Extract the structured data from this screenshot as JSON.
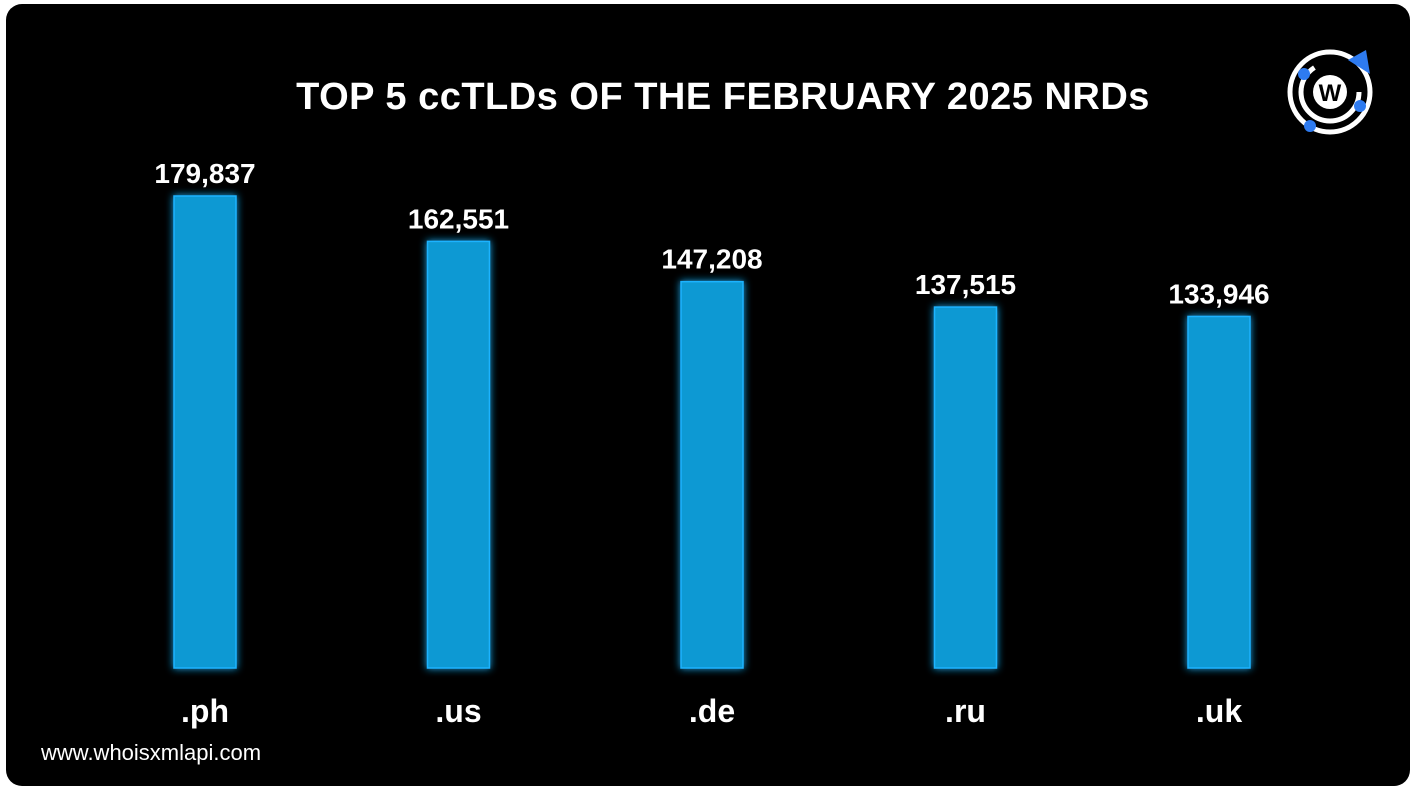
{
  "chart_data": {
    "type": "bar",
    "title": "TOP 5 ccTLDs OF THE FEBRUARY 2025 NRDs",
    "categories": [
      ".ph",
      ".us",
      ".de",
      ".ru",
      ".uk"
    ],
    "values": [
      179837,
      162551,
      147208,
      137515,
      133946
    ],
    "data_labels": [
      "179,837",
      "162,551",
      "147,208",
      "137,515",
      "133,946"
    ],
    "xlabel": "",
    "ylabel": "",
    "ylim": [
      0,
      179837
    ],
    "grid": false,
    "legend": "none"
  },
  "branding": {
    "website": "www.whoisxmlapi.com",
    "logo_icon": "whoisxmlapi-logo-icon",
    "logo_letter": "W"
  },
  "colors": {
    "background": "#000000",
    "bar": "#1199d3",
    "bar_glow": "#1fb3ff",
    "text": "#ffffff",
    "logo_accent": "#2e7bf0"
  }
}
